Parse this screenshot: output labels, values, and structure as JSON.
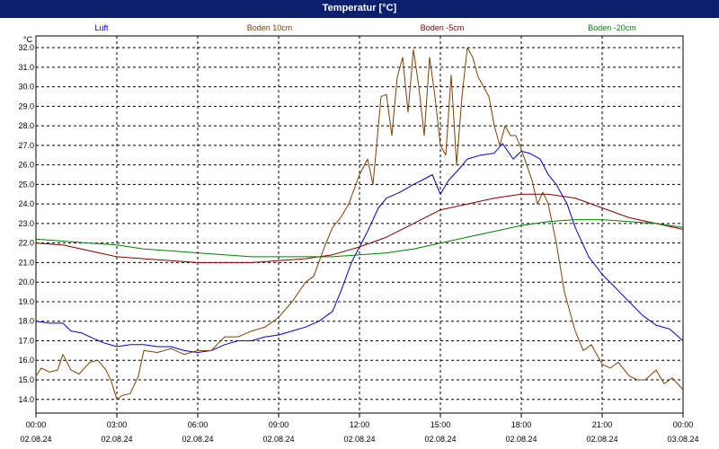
{
  "window": {
    "title": "Temperatur [°C]"
  },
  "chart_data": {
    "type": "line",
    "ylabel": "°C",
    "ylim": [
      13.3,
      32.6
    ],
    "yticks": [
      14.0,
      15.0,
      16.0,
      17.0,
      18.0,
      19.0,
      20.0,
      21.0,
      22.0,
      23.0,
      24.0,
      25.0,
      26.0,
      27.0,
      28.0,
      29.0,
      30.0,
      31.0,
      32.0
    ],
    "xlim": [
      0,
      24
    ],
    "xticks": [
      {
        "h": 0,
        "time": "00:00",
        "date": "02.08.24"
      },
      {
        "h": 3,
        "time": "03:00",
        "date": "02.08.24"
      },
      {
        "h": 6,
        "time": "06:00",
        "date": "02.08.24"
      },
      {
        "h": 9,
        "time": "09:00",
        "date": "02.08.24"
      },
      {
        "h": 12,
        "time": "12:00",
        "date": "02.08.24"
      },
      {
        "h": 15,
        "time": "15:00",
        "date": "02.08.24"
      },
      {
        "h": 18,
        "time": "18:00",
        "date": "02.08.24"
      },
      {
        "h": 21,
        "time": "21:00",
        "date": "02.08.24"
      },
      {
        "h": 24,
        "time": "00:00",
        "date": "03.08.24"
      }
    ],
    "grid": true,
    "legend_placement": "top",
    "series": [
      {
        "name": "Luft",
        "color": "#0000cc",
        "x": [
          0,
          0.5,
          1,
          1.3,
          1.7,
          2,
          2.5,
          3,
          3.5,
          4,
          4.5,
          5,
          5.5,
          6,
          6.5,
          7,
          7.5,
          8,
          8.5,
          9,
          9.5,
          10,
          10.5,
          11,
          11.3,
          11.7,
          12,
          12.3,
          12.7,
          13,
          13.5,
          14,
          14.3,
          14.7,
          15,
          15.3,
          15.7,
          16,
          16.5,
          17,
          17.3,
          17.7,
          18,
          18.3,
          18.7,
          19,
          19.3,
          19.7,
          20,
          20.5,
          21,
          21.5,
          22,
          22.5,
          23,
          23.5,
          24
        ],
        "y": [
          18.0,
          17.9,
          17.9,
          17.5,
          17.4,
          17.2,
          16.9,
          16.7,
          16.8,
          16.8,
          16.7,
          16.7,
          16.5,
          16.4,
          16.5,
          16.8,
          17.0,
          17.0,
          17.2,
          17.3,
          17.5,
          17.7,
          18.0,
          18.5,
          19.5,
          21.0,
          21.8,
          22.6,
          23.8,
          24.3,
          24.6,
          25.0,
          25.2,
          25.5,
          24.5,
          25.2,
          25.8,
          26.3,
          26.5,
          26.6,
          27.1,
          26.3,
          26.7,
          26.6,
          26.3,
          25.5,
          25.0,
          24.0,
          22.8,
          21.3,
          20.4,
          19.7,
          19.0,
          18.3,
          17.8,
          17.6,
          17.0
        ]
      },
      {
        "name": "Boden 10cm",
        "color": "#804000",
        "x": [
          0,
          0.2,
          0.5,
          0.8,
          1,
          1.3,
          1.6,
          2,
          2.3,
          2.6,
          2.8,
          3,
          3.2,
          3.5,
          3.8,
          4,
          4.5,
          5,
          5.5,
          6,
          6.5,
          7,
          7.5,
          8,
          8.5,
          9,
          9.5,
          10,
          10.3,
          10.7,
          11,
          11.3,
          11.6,
          12,
          12.3,
          12.5,
          12.8,
          13.0,
          13.2,
          13.4,
          13.6,
          13.8,
          14.0,
          14.2,
          14.4,
          14.6,
          14.8,
          15.0,
          15.2,
          15.4,
          15.6,
          15.8,
          16.0,
          16.2,
          16.4,
          16.6,
          16.8,
          17.0,
          17.2,
          17.4,
          17.6,
          17.8,
          18.0,
          18.2,
          18.4,
          18.6,
          18.8,
          19.0,
          19.3,
          19.6,
          20.0,
          20.3,
          20.6,
          21.0,
          21.3,
          21.6,
          22.0,
          22.3,
          22.6,
          23.0,
          23.3,
          23.6,
          24.0
        ],
        "y": [
          15.2,
          15.6,
          15.4,
          15.5,
          16.3,
          15.5,
          15.3,
          15.9,
          16.0,
          15.5,
          14.9,
          14.0,
          14.2,
          14.3,
          15.2,
          16.5,
          16.4,
          16.6,
          16.3,
          16.5,
          16.5,
          17.2,
          17.2,
          17.5,
          17.7,
          18.2,
          19.0,
          20.0,
          20.3,
          21.8,
          22.8,
          23.3,
          24.0,
          25.5,
          26.3,
          25.0,
          29.5,
          29.6,
          27.5,
          30.5,
          31.5,
          28.7,
          31.9,
          30.0,
          27.5,
          31.5,
          29.5,
          27.0,
          26.5,
          30.6,
          26.0,
          29.5,
          32.0,
          31.5,
          30.5,
          30.0,
          29.5,
          28.0,
          27.0,
          28.0,
          27.5,
          27.5,
          26.8,
          26.0,
          25.2,
          24.0,
          24.6,
          24.0,
          22.0,
          19.5,
          17.5,
          16.5,
          16.8,
          15.8,
          15.6,
          15.9,
          15.2,
          15.0,
          15.0,
          15.5,
          14.8,
          15.1,
          14.5
        ]
      },
      {
        "name": "Boden -5cm",
        "color": "#800000",
        "x": [
          0,
          1,
          2,
          3,
          4,
          5,
          6,
          7,
          8,
          9,
          10,
          11,
          12,
          13,
          14,
          15,
          16,
          17,
          18,
          19,
          20,
          21,
          22,
          23,
          24
        ],
        "y": [
          22.0,
          21.9,
          21.6,
          21.3,
          21.2,
          21.1,
          21.0,
          21.0,
          21.0,
          21.1,
          21.2,
          21.4,
          21.8,
          22.3,
          23.0,
          23.7,
          24.0,
          24.3,
          24.5,
          24.5,
          24.3,
          23.8,
          23.3,
          23.0,
          22.7
        ]
      },
      {
        "name": "Boden -20cm",
        "color": "#008000",
        "x": [
          0,
          1,
          2,
          3,
          4,
          5,
          6,
          7,
          8,
          9,
          10,
          11,
          12,
          13,
          14,
          15,
          16,
          17,
          18,
          19,
          20,
          21,
          22,
          23,
          24
        ],
        "y": [
          22.2,
          22.1,
          22.0,
          21.9,
          21.7,
          21.6,
          21.5,
          21.4,
          21.3,
          21.3,
          21.3,
          21.3,
          21.4,
          21.5,
          21.7,
          22.0,
          22.3,
          22.6,
          22.9,
          23.1,
          23.2,
          23.2,
          23.1,
          23.0,
          22.8
        ]
      }
    ]
  }
}
